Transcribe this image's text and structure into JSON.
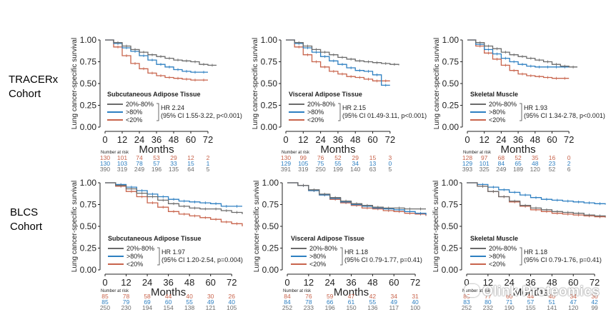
{
  "cohorts": [
    {
      "line1": "TRACERx",
      "line2": "Cohort"
    },
    {
      "line1": "BLCS",
      "line2": "Cohort"
    }
  ],
  "common": {
    "ylabel": "Lung cancer-specific survival",
    "xlabel": "Months",
    "risk_title": "Number at risk",
    "yticks": [
      "0.00",
      "0.25",
      "0.50",
      "0.75",
      "1.00"
    ],
    "xticks": [
      "0",
      "12",
      "24",
      "36",
      "48",
      "60",
      "72"
    ],
    "legend_labels": [
      "20%-80%",
      ">80%",
      "<20%"
    ]
  },
  "colors": {
    "mid": "#6b6b6b",
    "high": "#2d7fc1",
    "low": "#c8644c",
    "axis": "#222222"
  },
  "watermark": "Olink Proteomics",
  "chart_data": [
    {
      "type": "line",
      "title": "Subcutaneous Adipose Tissue",
      "xlabel": "Months",
      "ylabel": "Lung cancer-specific survival",
      "xlim": [
        0,
        78
      ],
      "ylim": [
        0,
        1
      ],
      "hr_text": "HR 2.24",
      "ci_text": "(95% CI 1.55-3.22, p<0.001)",
      "series": [
        {
          "name": "20%-80%",
          "x": [
            0,
            6,
            12,
            18,
            24,
            30,
            36,
            42,
            48,
            54,
            60,
            66,
            72,
            78
          ],
          "y": [
            1.0,
            0.97,
            0.93,
            0.89,
            0.86,
            0.83,
            0.81,
            0.79,
            0.77,
            0.76,
            0.75,
            0.72,
            0.71,
            0.71
          ]
        },
        {
          "name": ">80%",
          "x": [
            0,
            6,
            12,
            18,
            24,
            30,
            36,
            42,
            48,
            54,
            60,
            66,
            72
          ],
          "y": [
            1.0,
            0.96,
            0.91,
            0.87,
            0.82,
            0.77,
            0.72,
            0.69,
            0.66,
            0.64,
            0.63,
            0.63,
            0.63
          ]
        },
        {
          "name": "<20%",
          "x": [
            0,
            6,
            12,
            18,
            24,
            30,
            36,
            42,
            48,
            54,
            60,
            66,
            72
          ],
          "y": [
            1.0,
            0.92,
            0.82,
            0.73,
            0.67,
            0.62,
            0.59,
            0.57,
            0.56,
            0.55,
            0.54,
            0.54,
            0.54
          ]
        }
      ],
      "risk_table": [
        [
          "130",
          "101",
          "74",
          "53",
          "29",
          "12",
          "2"
        ],
        [
          "130",
          "103",
          "78",
          "57",
          "33",
          "15",
          "1"
        ],
        [
          "390",
          "319",
          "249",
          "196",
          "135",
          "64",
          "5"
        ]
      ]
    },
    {
      "type": "line",
      "title": "Visceral Adipose Tissue",
      "xlabel": "Months",
      "ylabel": "Lung cancer-specific survival",
      "xlim": [
        0,
        78
      ],
      "ylim": [
        0,
        1
      ],
      "hr_text": "HR 2.15",
      "ci_text": "(95% CI 01.49-3.11, p<0.001)",
      "series": [
        {
          "name": "20%-80%",
          "x": [
            0,
            6,
            12,
            18,
            24,
            30,
            36,
            42,
            48,
            54,
            60,
            66,
            72,
            78
          ],
          "y": [
            1.0,
            0.97,
            0.93,
            0.89,
            0.86,
            0.83,
            0.8,
            0.78,
            0.76,
            0.75,
            0.74,
            0.73,
            0.72,
            0.71
          ]
        },
        {
          "name": ">80%",
          "x": [
            0,
            6,
            12,
            18,
            24,
            30,
            36,
            42,
            48,
            54,
            60,
            66,
            72
          ],
          "y": [
            1.0,
            0.96,
            0.91,
            0.86,
            0.81,
            0.76,
            0.72,
            0.68,
            0.65,
            0.64,
            0.6,
            0.48,
            0.48
          ]
        },
        {
          "name": "<20%",
          "x": [
            0,
            6,
            12,
            18,
            24,
            30,
            36,
            42,
            48,
            54,
            60,
            66,
            72
          ],
          "y": [
            1.0,
            0.92,
            0.83,
            0.75,
            0.69,
            0.64,
            0.61,
            0.58,
            0.57,
            0.55,
            0.53,
            0.53,
            0.53
          ]
        }
      ],
      "risk_table": [
        [
          "130",
          "99",
          "76",
          "52",
          "29",
          "15",
          "3"
        ],
        [
          "129",
          "105",
          "75",
          "55",
          "34",
          "13",
          "0"
        ],
        [
          "391",
          "319",
          "250",
          "199",
          "140",
          "63",
          "5"
        ]
      ]
    },
    {
      "type": "line",
      "title": "Skeletal Muscle",
      "xlabel": "Months",
      "ylabel": "Lung cancer-specific survival",
      "xlim": [
        0,
        78
      ],
      "ylim": [
        0,
        1
      ],
      "hr_text": "HR 1.93",
      "ci_text": "(95% CI 1.34-2.78, p<0.001)",
      "series": [
        {
          "name": "20%-80%",
          "x": [
            0,
            6,
            12,
            18,
            24,
            30,
            36,
            42,
            48,
            54,
            60,
            66,
            72,
            78
          ],
          "y": [
            1.0,
            0.97,
            0.93,
            0.9,
            0.86,
            0.83,
            0.81,
            0.79,
            0.77,
            0.75,
            0.72,
            0.7,
            0.69,
            0.69
          ]
        },
        {
          "name": ">80%",
          "x": [
            0,
            6,
            12,
            18,
            24,
            30,
            36,
            42,
            48,
            54,
            60,
            66,
            72
          ],
          "y": [
            1.0,
            0.95,
            0.89,
            0.84,
            0.79,
            0.75,
            0.72,
            0.7,
            0.69,
            0.69,
            0.69,
            0.69,
            0.69
          ]
        },
        {
          "name": "<20%",
          "x": [
            0,
            6,
            12,
            18,
            24,
            30,
            36,
            42,
            48,
            54,
            60,
            66,
            72
          ],
          "y": [
            1.0,
            0.93,
            0.85,
            0.78,
            0.71,
            0.65,
            0.61,
            0.59,
            0.58,
            0.57,
            0.56,
            0.56,
            0.56
          ]
        }
      ],
      "risk_table": [
        [
          "128",
          "97",
          "68",
          "52",
          "35",
          "16",
          "0"
        ],
        [
          "129",
          "101",
          "84",
          "65",
          "48",
          "23",
          "2"
        ],
        [
          "393",
          "325",
          "249",
          "189",
          "120",
          "52",
          "6"
        ]
      ]
    },
    {
      "type": "line",
      "title": "Subcutaneous Adipose Tissue",
      "xlabel": "Months",
      "ylabel": "Lung cancer-specific survival",
      "xlim": [
        0,
        78
      ],
      "ylim": [
        0,
        1
      ],
      "hr_text": "HR 1.97",
      "ci_text": "(95% CI 1.20-2.54, p=0.004)",
      "series": [
        {
          "name": "20%-80%",
          "x": [
            0,
            6,
            12,
            18,
            24,
            30,
            36,
            42,
            48,
            54,
            60,
            66,
            72,
            78
          ],
          "y": [
            1.0,
            0.97,
            0.93,
            0.88,
            0.84,
            0.8,
            0.76,
            0.73,
            0.71,
            0.7,
            0.7,
            0.68,
            0.66,
            0.64
          ]
        },
        {
          "name": ">80%",
          "x": [
            0,
            6,
            12,
            18,
            24,
            30,
            36,
            42,
            48,
            54,
            60,
            66,
            72,
            78
          ],
          "y": [
            1.0,
            0.98,
            0.95,
            0.91,
            0.87,
            0.84,
            0.81,
            0.79,
            0.78,
            0.77,
            0.76,
            0.73,
            0.73,
            0.73
          ]
        },
        {
          "name": "<20%",
          "x": [
            0,
            6,
            12,
            18,
            24,
            30,
            36,
            42,
            48,
            54,
            60,
            66,
            72,
            78
          ],
          "y": [
            1.0,
            0.96,
            0.9,
            0.84,
            0.77,
            0.72,
            0.67,
            0.64,
            0.62,
            0.6,
            0.58,
            0.55,
            0.53,
            0.5
          ]
        }
      ],
      "risk_table": [
        [
          "85",
          "78",
          "58",
          "44",
          "40",
          "30",
          "26"
        ],
        [
          "85",
          "79",
          "69",
          "60",
          "55",
          "49",
          "40"
        ],
        [
          "250",
          "230",
          "194",
          "154",
          "138",
          "121",
          "105"
        ]
      ]
    },
    {
      "type": "line",
      "title": "Visceral Adipose Tissue",
      "xlabel": "Months",
      "ylabel": "Lung cancer-specific survival",
      "xlim": [
        0,
        78
      ],
      "ylim": [
        0,
        1
      ],
      "hr_text": "HR 1.18",
      "ci_text": "(95% CI 0.79-1.77, p=0.41)",
      "series": [
        {
          "name": "20%-80%",
          "x": [
            0,
            6,
            12,
            18,
            24,
            30,
            36,
            42,
            48,
            54,
            60,
            66,
            72,
            78
          ],
          "y": [
            1.0,
            0.97,
            0.92,
            0.87,
            0.83,
            0.79,
            0.76,
            0.74,
            0.72,
            0.71,
            0.71,
            0.7,
            0.7,
            0.7
          ]
        },
        {
          "name": ">80%",
          "x": [
            0,
            6,
            12,
            18,
            24,
            30,
            36,
            42,
            48,
            54,
            60,
            66,
            72,
            78
          ],
          "y": [
            1.0,
            0.97,
            0.91,
            0.86,
            0.82,
            0.78,
            0.75,
            0.73,
            0.71,
            0.7,
            0.69,
            0.67,
            0.65,
            0.63
          ]
        },
        {
          "name": "<20%",
          "x": [
            0,
            6,
            12,
            18,
            24,
            30,
            36,
            42,
            48,
            54,
            60,
            66,
            72,
            78
          ],
          "y": [
            1.0,
            0.97,
            0.91,
            0.86,
            0.81,
            0.77,
            0.74,
            0.71,
            0.7,
            0.68,
            0.67,
            0.65,
            0.64,
            0.62
          ]
        }
      ],
      "risk_table": [
        [
          "84",
          "76",
          "59",
          "47",
          "42",
          "34",
          "31"
        ],
        [
          "84",
          "78",
          "66",
          "61",
          "55",
          "49",
          "40"
        ],
        [
          "252",
          "233",
          "196",
          "150",
          "136",
          "117",
          "100"
        ]
      ]
    },
    {
      "type": "line",
      "title": "Skeletal Muscle",
      "xlabel": "Months",
      "ylabel": "Lung cancer-specific survival",
      "xlim": [
        0,
        78
      ],
      "ylim": [
        0,
        1
      ],
      "hr_text": "HR 1.18",
      "ci_text": "(95% CI 0.79-1.76, p=0.41)",
      "series": [
        {
          "name": "20%-80%",
          "x": [
            0,
            6,
            12,
            18,
            24,
            30,
            36,
            42,
            48,
            54,
            60,
            66,
            72,
            78
          ],
          "y": [
            1.0,
            0.96,
            0.9,
            0.84,
            0.79,
            0.74,
            0.71,
            0.69,
            0.67,
            0.66,
            0.65,
            0.63,
            0.62,
            0.61
          ]
        },
        {
          "name": ">80%",
          "x": [
            0,
            6,
            12,
            18,
            24,
            30,
            36,
            42,
            48,
            54,
            60,
            66,
            72,
            78
          ],
          "y": [
            1.0,
            0.98,
            0.95,
            0.92,
            0.89,
            0.86,
            0.83,
            0.81,
            0.8,
            0.79,
            0.78,
            0.77,
            0.76,
            0.75
          ]
        },
        {
          "name": "<20%",
          "x": [
            0,
            6,
            12,
            18,
            24,
            30,
            36,
            42,
            48,
            54,
            60,
            66,
            72,
            78
          ],
          "y": [
            1.0,
            0.96,
            0.9,
            0.84,
            0.78,
            0.73,
            0.69,
            0.67,
            0.65,
            0.64,
            0.63,
            0.62,
            0.61,
            0.6
          ]
        }
      ],
      "risk_table": [
        [
          "85",
          "77",
          "60",
          "44",
          "40",
          "34",
          "30"
        ],
        [
          "83",
          "80",
          "71",
          "57",
          "51",
          "47",
          "42"
        ],
        [
          "252",
          "232",
          "190",
          "155",
          "141",
          "120",
          "99"
        ]
      ]
    }
  ]
}
